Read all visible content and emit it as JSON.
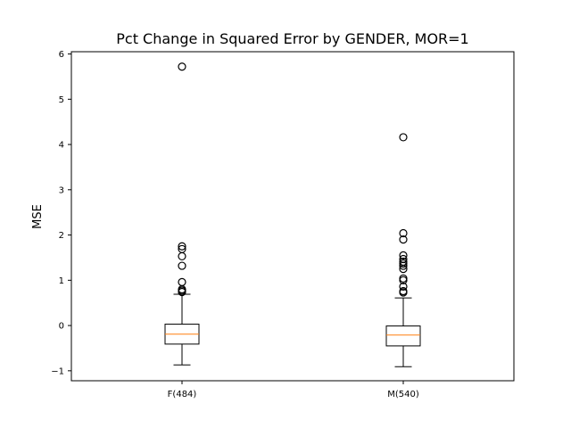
{
  "chart_data": {
    "type": "box",
    "title": "Pct Change in Squared Error by GENDER, MOR=1",
    "xlabel": "",
    "ylabel": "MSE",
    "ylim": [
      -1.22,
      6.05
    ],
    "yticks": [
      -1,
      0,
      1,
      2,
      3,
      4,
      5,
      6
    ],
    "ytick_labels": [
      "−1",
      "0",
      "1",
      "2",
      "3",
      "4",
      "5",
      "6"
    ],
    "grid": false,
    "legend": "none",
    "colors": {
      "box": "#000000",
      "median": "#ff7f0e",
      "flier": "#000000"
    },
    "categories": [
      "F(484)",
      "M(540)"
    ],
    "boxes": [
      {
        "label": "F(484)",
        "whisker_low": -0.87,
        "q1": -0.41,
        "median": -0.19,
        "q3": 0.03,
        "whisker_high": 0.69,
        "outliers": [
          0.74,
          0.77,
          0.8,
          0.96,
          1.32,
          1.53,
          1.69,
          1.75,
          5.72
        ]
      },
      {
        "label": "M(540)",
        "whisker_low": -0.91,
        "q1": -0.45,
        "median": -0.21,
        "q3": -0.01,
        "whisker_high": 0.61,
        "outliers": [
          0.73,
          0.76,
          0.86,
          1.0,
          1.04,
          1.25,
          1.32,
          1.37,
          1.41,
          1.47,
          1.55,
          1.9,
          2.04,
          4.16
        ]
      }
    ]
  }
}
